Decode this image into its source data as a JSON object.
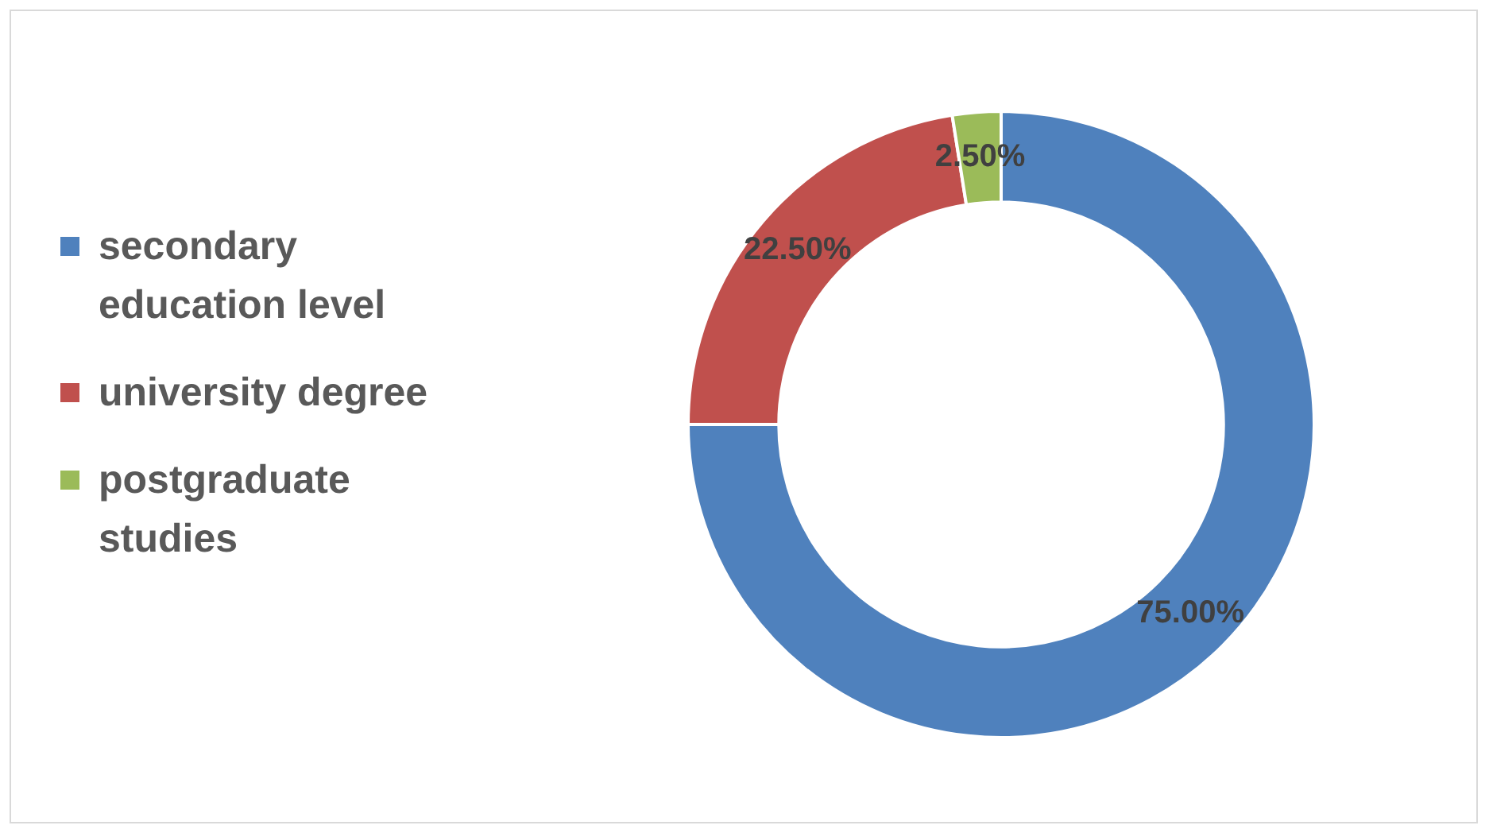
{
  "chart_data": {
    "type": "donut",
    "categories": [
      "secondary education level",
      "university degree",
      "postgraduate studies"
    ],
    "values": [
      75,
      22.5,
      2.5
    ],
    "colors": [
      "#4f81bd",
      "#c0504d",
      "#9bbb59"
    ],
    "value_labels": [
      "75.00%",
      "22.50%",
      "2.50%"
    ],
    "legend": "left"
  }
}
